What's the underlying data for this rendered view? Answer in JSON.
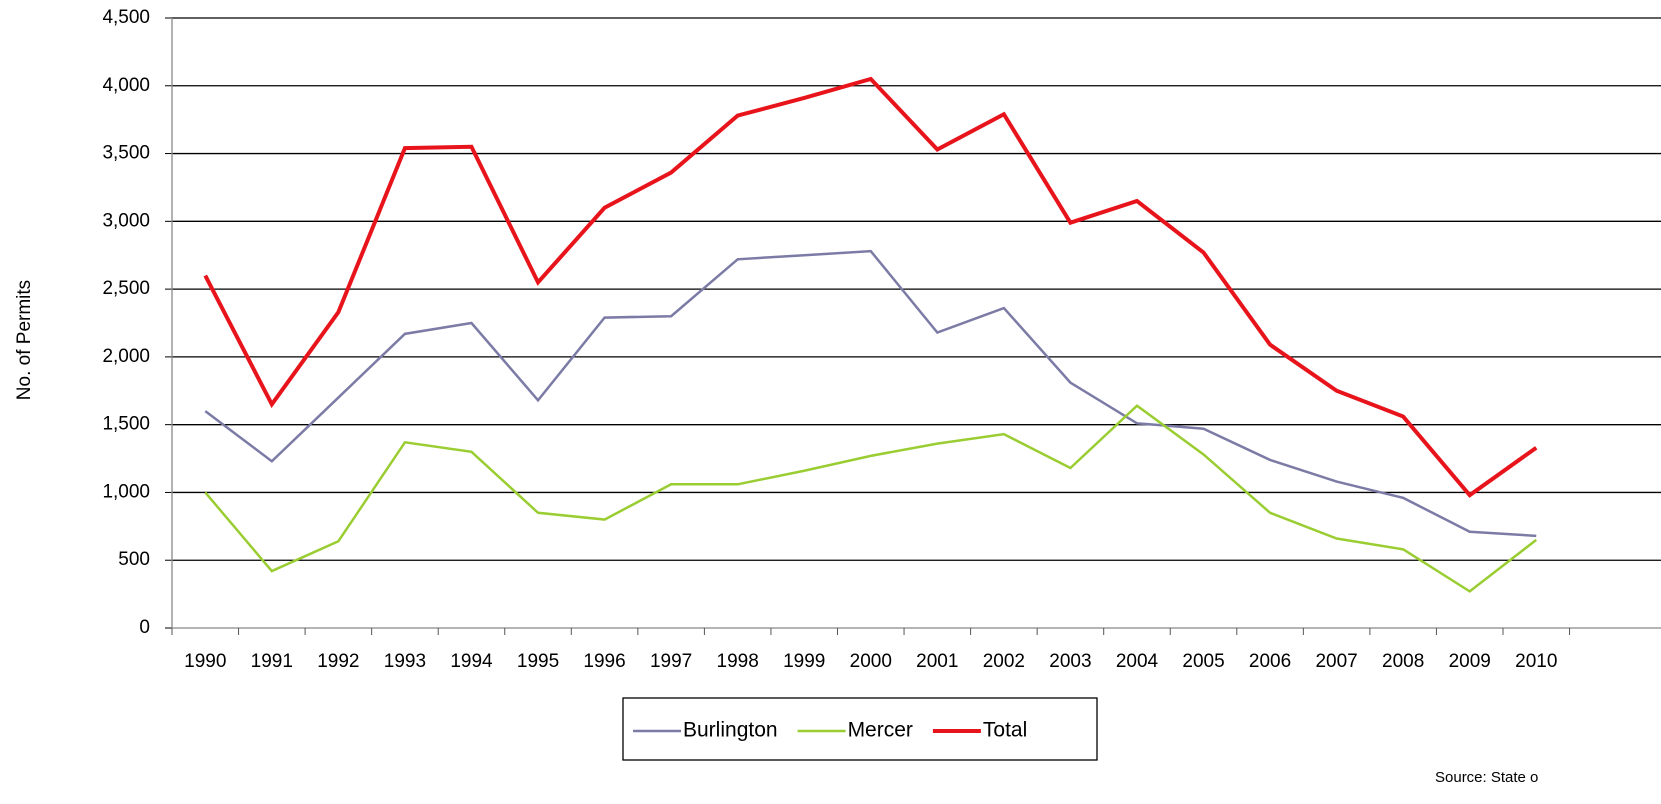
{
  "chart_data": {
    "type": "line",
    "y_label": "No. of Permits",
    "source": "Source: State o",
    "categories": [
      "1990",
      "1991",
      "1992",
      "1993",
      "1994",
      "1995",
      "1996",
      "1997",
      "1998",
      "1999",
      "2000",
      "2001",
      "2002",
      "2003",
      "2004",
      "2005",
      "2006",
      "2007",
      "2008",
      "2009",
      "2010"
    ],
    "series": [
      {
        "name": "Burlington",
        "color": "#7b7ba6",
        "values": [
          1600,
          1230,
          1700,
          2170,
          2250,
          1680,
          2290,
          2300,
          2720,
          2750,
          2780,
          2180,
          2360,
          1810,
          1510,
          1470,
          1240,
          1080,
          960,
          710,
          680
        ]
      },
      {
        "name": "Mercer",
        "color": "#9acd32",
        "values": [
          1000,
          420,
          640,
          1370,
          1300,
          850,
          800,
          1060,
          1060,
          1160,
          1270,
          1360,
          1430,
          1180,
          1640,
          1280,
          850,
          660,
          580,
          270,
          650
        ]
      },
      {
        "name": "Total",
        "color": "#e8141b",
        "values": [
          2600,
          1650,
          2330,
          3540,
          3550,
          2550,
          3100,
          3360,
          3780,
          3910,
          4050,
          3530,
          3790,
          2990,
          3150,
          2770,
          2090,
          1750,
          1560,
          980,
          1330
        ]
      }
    ],
    "ylim": [
      0,
      4500
    ],
    "yticks": [
      0,
      500,
      {
        "value": 1000,
        "label": "1,000"
      },
      {
        "value": 1500,
        "label": "1,500"
      },
      {
        "value": 2000,
        "label": "2,000"
      },
      {
        "value": 2500,
        "label": "2,500"
      },
      {
        "value": 3000,
        "label": "3,000"
      },
      {
        "value": 3500,
        "label": "3,500"
      },
      {
        "value": 4000,
        "label": "4,000"
      },
      {
        "value": 4500,
        "label": "4,500"
      }
    ],
    "grid": true,
    "legend": "bottom"
  }
}
